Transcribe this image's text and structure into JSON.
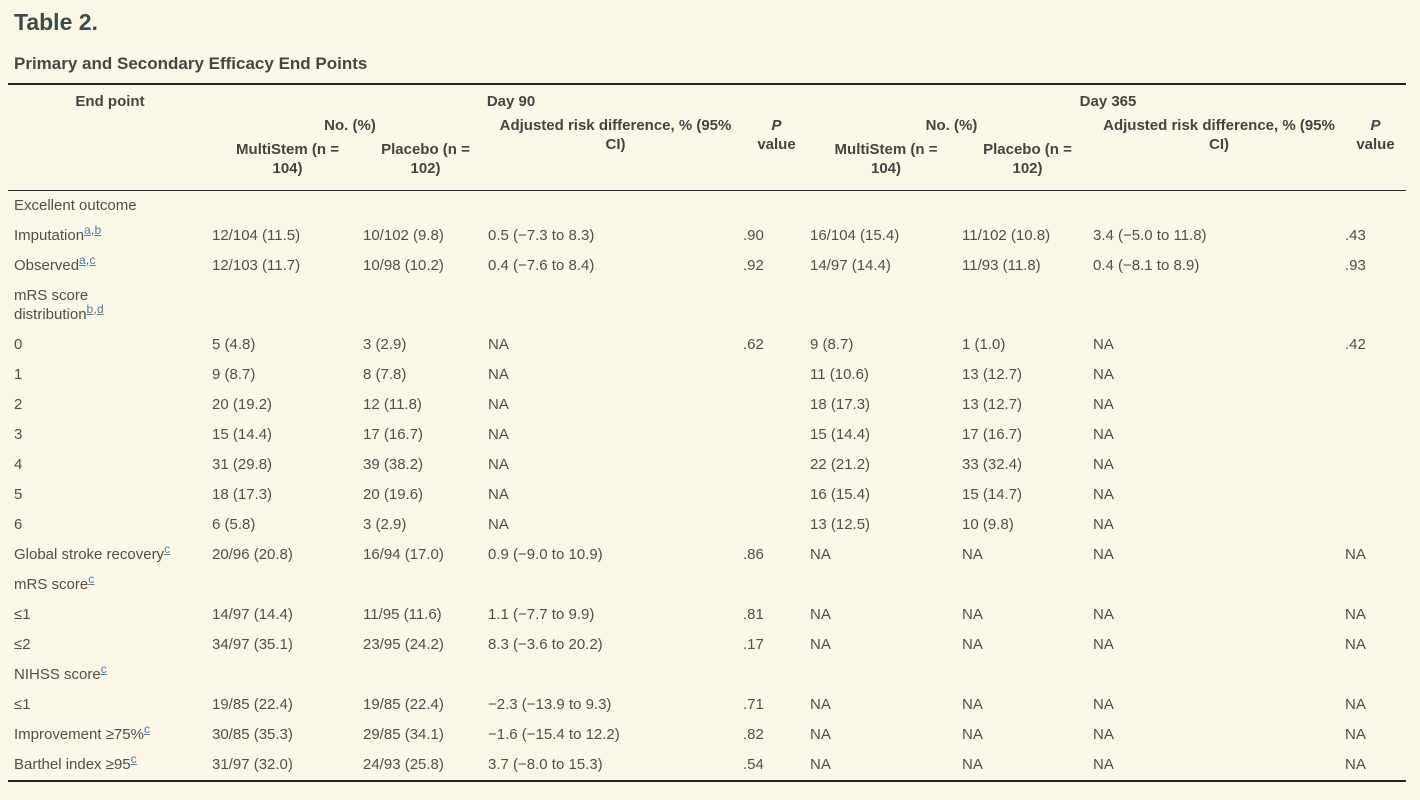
{
  "page": {
    "background_color": "#fbf7e6",
    "title": "Table 2.",
    "subtitle": "Primary and Secondary Efficacy End Points"
  },
  "colors": {
    "link_blue": "#4f7d9c",
    "body_text": "#504f4b",
    "heading_text": "#3e4a45",
    "rule_dark": "#232323"
  },
  "table": {
    "header": {
      "endpoint": "End point",
      "day90": "Day 90",
      "day365": "Day 365",
      "no_pct": "No. (%)",
      "ard": "Adjusted risk difference, % (95% CI)",
      "p": "P",
      "value": "value",
      "multistem": "MultiStem (n = 104)",
      "placebo": "Placebo (n = 102)"
    },
    "rows": [
      {
        "label": "Excellent outcome",
        "sup": "",
        "cells": [
          "",
          "",
          "",
          "",
          "",
          "",
          "",
          ""
        ]
      },
      {
        "label": "Imputation",
        "sup": "a,b",
        "cells": [
          "12/104 (11.5)",
          "10/102 (9.8)",
          "0.5 (−7.3 to 8.3)",
          ".90",
          "16/104 (15.4)",
          "11/102 (10.8)",
          "3.4 (−5.0 to 11.8)",
          ".43"
        ]
      },
      {
        "label": "Observed",
        "sup": "a,c",
        "cells": [
          "12/103 (11.7)",
          "10/98 (10.2)",
          "0.4 (−7.6 to 8.4)",
          ".92",
          "14/97 (14.4)",
          "11/93 (11.8)",
          "0.4 (−8.1 to 8.9)",
          ".93"
        ]
      },
      {
        "label": "mRS score\ndistribution",
        "sup": "b,d",
        "cells": [
          "",
          "",
          "",
          "",
          "",
          "",
          "",
          ""
        ]
      },
      {
        "label": "0",
        "sup": "",
        "cells": [
          "5 (4.8)",
          "3 (2.9)",
          "NA",
          ".62",
          "9 (8.7)",
          "1 (1.0)",
          "NA",
          ".42"
        ]
      },
      {
        "label": "1",
        "sup": "",
        "cells": [
          "9 (8.7)",
          "8 (7.8)",
          "NA",
          "",
          "11 (10.6)",
          "13 (12.7)",
          "NA",
          ""
        ]
      },
      {
        "label": "2",
        "sup": "",
        "cells": [
          "20 (19.2)",
          "12 (11.8)",
          "NA",
          "",
          "18 (17.3)",
          "13 (12.7)",
          "NA",
          ""
        ]
      },
      {
        "label": "3",
        "sup": "",
        "cells": [
          "15 (14.4)",
          "17 (16.7)",
          "NA",
          "",
          "15 (14.4)",
          "17 (16.7)",
          "NA",
          ""
        ]
      },
      {
        "label": "4",
        "sup": "",
        "cells": [
          "31 (29.8)",
          "39 (38.2)",
          "NA",
          "",
          "22 (21.2)",
          "33 (32.4)",
          "NA",
          ""
        ]
      },
      {
        "label": "5",
        "sup": "",
        "cells": [
          "18 (17.3)",
          "20 (19.6)",
          "NA",
          "",
          "16 (15.4)",
          "15 (14.7)",
          "NA",
          ""
        ]
      },
      {
        "label": "6",
        "sup": "",
        "cells": [
          "6 (5.8)",
          "3 (2.9)",
          "NA",
          "",
          "13 (12.5)",
          "10 (9.8)",
          "NA",
          ""
        ]
      },
      {
        "label": "Global stroke recovery",
        "sup": "c",
        "cells": [
          "20/96 (20.8)",
          "16/94 (17.0)",
          "0.9 (−9.0 to 10.9)",
          ".86",
          "NA",
          "NA",
          "NA",
          "NA"
        ]
      },
      {
        "label": "mRS score",
        "sup": "c",
        "cells": [
          "",
          "",
          "",
          "",
          "",
          "",
          "",
          ""
        ]
      },
      {
        "label": "≤1",
        "sup": "",
        "cells": [
          "14/97 (14.4)",
          "11/95 (11.6)",
          "1.1 (−7.7 to 9.9)",
          ".81",
          "NA",
          "NA",
          "NA",
          "NA"
        ]
      },
      {
        "label": "≤2",
        "sup": "",
        "cells": [
          "34/97 (35.1)",
          "23/95 (24.2)",
          "8.3 (−3.6 to 20.2)",
          ".17",
          "NA",
          "NA",
          "NA",
          "NA"
        ]
      },
      {
        "label": "NIHSS score",
        "sup": "c",
        "cells": [
          "",
          "",
          "",
          "",
          "",
          "",
          "",
          ""
        ]
      },
      {
        "label": "≤1",
        "sup": "",
        "cells": [
          "19/85 (22.4)",
          "19/85 (22.4)",
          "−2.3 (−13.9 to 9.3)",
          ".71",
          "NA",
          "NA",
          "NA",
          "NA"
        ]
      },
      {
        "label": "Improvement ≥75%",
        "sup": "c",
        "cells": [
          "30/85 (35.3)",
          "29/85 (34.1)",
          "−1.6 (−15.4 to 12.2)",
          ".82",
          "NA",
          "NA",
          "NA",
          "NA"
        ]
      },
      {
        "label": "Barthel index ≥95",
        "sup": "c",
        "cells": [
          "31/97 (32.0)",
          "24/93 (25.8)",
          "3.7 (−8.0 to 15.3)",
          ".54",
          "NA",
          "NA",
          "NA",
          "NA"
        ]
      }
    ]
  }
}
